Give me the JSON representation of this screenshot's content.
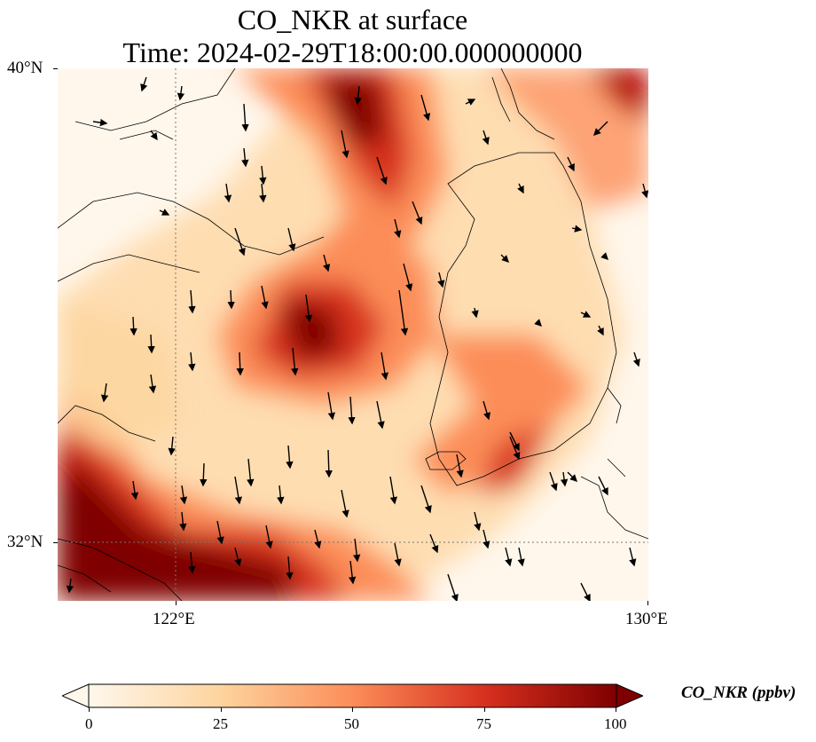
{
  "title_line1": "CO_NKR at surface",
  "title_line2": "Time: 2024-02-29T18:00:00.000000000",
  "axes": {
    "y_ticks": [
      "40°N",
      "32°N"
    ],
    "x_ticks": [
      "122°E",
      "130°E"
    ]
  },
  "colorbar": {
    "label": "CO_NKR (ppbv)",
    "ticks": [
      "0",
      "25",
      "50",
      "75",
      "100"
    ],
    "min": 0,
    "max": 100,
    "extend": "both",
    "colormap": [
      "#fff7ec",
      "#fdd49e",
      "#fc8d59",
      "#d7301f",
      "#7f0000"
    ]
  },
  "map": {
    "extent": {
      "lon_min": 120,
      "lon_max": 130,
      "lat_min": 31,
      "lat_max": 40
    },
    "gridlines": "dotted at 122°E and 32°N",
    "features": [
      "coastlines",
      "wind vectors"
    ]
  }
}
